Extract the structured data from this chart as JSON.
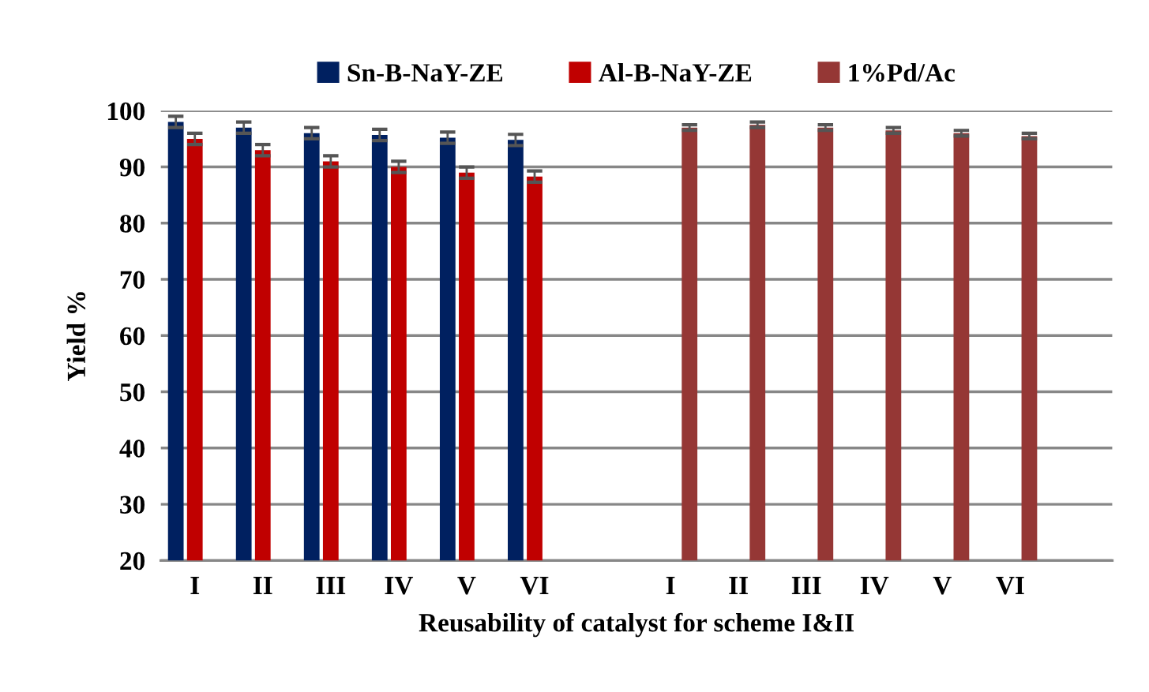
{
  "chart_data": {
    "type": "bar",
    "xlabel": "Reusability of catalyst for scheme I&II",
    "ylabel": "Yield %",
    "categories": [
      "I",
      "II",
      "III",
      "IV",
      "V",
      "VI",
      null,
      "I",
      "II",
      "III",
      "IV",
      "V",
      "VI",
      null
    ],
    "series": [
      {
        "name": "Sn-B-NaY-ZE",
        "color": "#002060",
        "values": [
          98.0,
          97.0,
          96.0,
          95.7,
          95.2,
          94.8,
          null,
          null,
          null,
          null,
          null,
          null,
          null,
          null
        ],
        "errors": [
          1,
          1,
          1,
          1,
          1,
          1,
          null,
          null,
          null,
          null,
          null,
          null,
          null,
          null
        ]
      },
      {
        "name": "Al-B-NaY-ZE",
        "color": "#c00000",
        "values": [
          95.0,
          93.0,
          91.0,
          90.0,
          89.0,
          88.3,
          null,
          null,
          null,
          null,
          null,
          null,
          null,
          null
        ],
        "errors": [
          1,
          1,
          1,
          1,
          1,
          1,
          null,
          null,
          null,
          null,
          null,
          null,
          null,
          null
        ]
      },
      {
        "name": "1%Pd/Ac",
        "color": "#953735",
        "values": [
          null,
          null,
          null,
          null,
          null,
          null,
          null,
          97.0,
          97.5,
          97.0,
          96.5,
          96.0,
          95.5,
          null
        ],
        "errors": [
          null,
          null,
          null,
          null,
          null,
          null,
          null,
          0.5,
          0.5,
          0.5,
          0.5,
          0.5,
          0.5,
          null
        ]
      }
    ],
    "ylim": [
      20,
      100
    ],
    "yticks": [
      20,
      30,
      40,
      50,
      60,
      70,
      80,
      90,
      100
    ],
    "grid": "y",
    "legend": "top"
  }
}
